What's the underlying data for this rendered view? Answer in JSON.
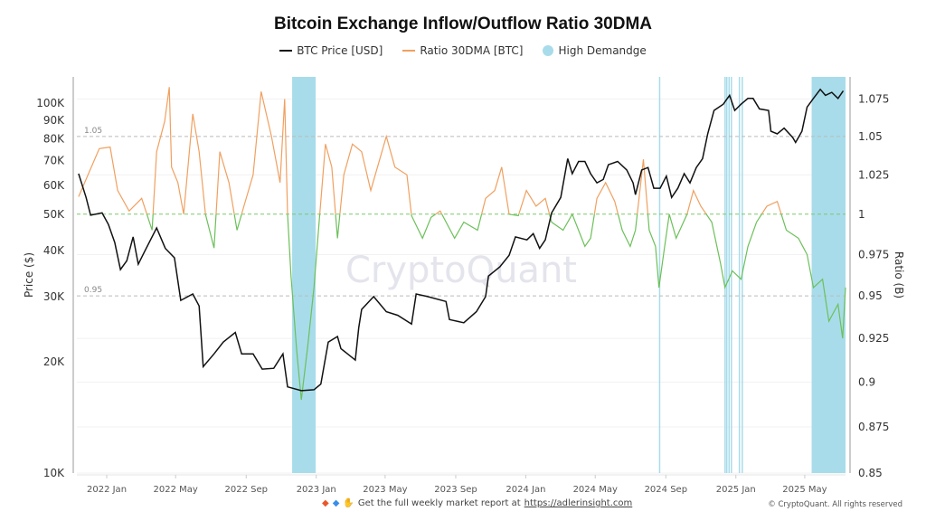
{
  "title": "Bitcoin Exchange Inflow/Outflow Ratio 30DMA",
  "legend": [
    {
      "label": "BTC Price [USD]",
      "color": "#111111",
      "icon": "line"
    },
    {
      "label": "Ratio 30DMA [BTC]",
      "color": "#f0a060",
      "icon": "line"
    },
    {
      "label": "High Demandge",
      "color": "#a8dcea",
      "icon": "circle"
    }
  ],
  "footer": {
    "icons": [
      "orange-diamond-icon",
      "blue-diamond-icon",
      "raised-hands-icon"
    ],
    "text": "Get the full weekly market report at",
    "link": "https://adlerinsight.com",
    "copyright": "© CryptoQuant. All rights reserved"
  },
  "watermark": "CryptoQuant",
  "chart_data": {
    "type": "line",
    "title": "Bitcoin Exchange Inflow/Outflow Ratio 30DMA",
    "x_range": [
      "2021-11-10",
      "2025-07-11"
    ],
    "x_ticks": [
      {
        "date": "2022-01-01",
        "label": "2022 Jan"
      },
      {
        "date": "2022-05-01",
        "label": "2022 May"
      },
      {
        "date": "2022-09-01",
        "label": "2022 Sep"
      },
      {
        "date": "2023-01-01",
        "label": "2023 Jan"
      },
      {
        "date": "2023-05-01",
        "label": "2023 May"
      },
      {
        "date": "2023-09-01",
        "label": "2023 Sep"
      },
      {
        "date": "2024-01-01",
        "label": "2024 Jan"
      },
      {
        "date": "2024-05-01",
        "label": "2024 May"
      },
      {
        "date": "2024-09-01",
        "label": "2024 Sep"
      },
      {
        "date": "2025-01-01",
        "label": "2025 Jan"
      },
      {
        "date": "2025-05-01",
        "label": "2025 May"
      }
    ],
    "y_left": {
      "label": "Price ($)",
      "scale": "log",
      "range": [
        10000,
        117800
      ],
      "ticks": [
        {
          "v": 10000,
          "label": "10K"
        },
        {
          "v": 20000,
          "label": "20K"
        },
        {
          "v": 30000,
          "label": "30K"
        },
        {
          "v": 40000,
          "label": "40K"
        },
        {
          "v": 50000,
          "label": "50K"
        },
        {
          "v": 60000,
          "label": "60K"
        },
        {
          "v": 70000,
          "label": "70K"
        },
        {
          "v": 80000,
          "label": "80K"
        },
        {
          "v": 90000,
          "label": "90K"
        },
        {
          "v": 100000,
          "label": "100K"
        }
      ]
    },
    "y_right": {
      "label": "Ratio (B)",
      "scale": "log",
      "range": [
        0.85,
        1.09
      ],
      "ticks": [
        {
          "v": 0.85,
          "label": "0.85"
        },
        {
          "v": 0.875,
          "label": "0.875"
        },
        {
          "v": 0.9,
          "label": "0.9"
        },
        {
          "v": 0.925,
          "label": "0.925"
        },
        {
          "v": 0.95,
          "label": "0.95"
        },
        {
          "v": 0.975,
          "label": "0.975"
        },
        {
          "v": 1,
          "label": "1"
        },
        {
          "v": 1.025,
          "label": "1.025"
        },
        {
          "v": 1.05,
          "label": "1.05"
        },
        {
          "v": 1.075,
          "label": "1.075"
        }
      ]
    },
    "reference_lines": [
      {
        "v": 1.05,
        "label": "1.05",
        "color": "#bbbbbb"
      },
      {
        "v": 1.0,
        "label": "",
        "color": "#7cc86a"
      },
      {
        "v": 0.95,
        "label": "0.95",
        "color": "#bbbbbb"
      }
    ],
    "ratio_colors": {
      "above_1": "#f0a060",
      "below_1": "#6cc05a"
    },
    "grid": true,
    "legend_position": "top",
    "series": [
      {
        "name": "BTC Price [USD]",
        "axis": "left",
        "color": "#111111",
        "points": [
          [
            "2021-11-13",
            64500
          ],
          [
            "2021-11-26",
            55600
          ],
          [
            "2021-12-04",
            49800
          ],
          [
            "2021-12-24",
            50500
          ],
          [
            "2022-01-04",
            47000
          ],
          [
            "2022-01-15",
            42000
          ],
          [
            "2022-01-25",
            35500
          ],
          [
            "2022-02-05",
            37500
          ],
          [
            "2022-02-16",
            43500
          ],
          [
            "2022-02-25",
            36700
          ],
          [
            "2022-03-08",
            39700
          ],
          [
            "2022-03-29",
            46000
          ],
          [
            "2022-04-13",
            40500
          ],
          [
            "2022-04-29",
            38200
          ],
          [
            "2022-05-10",
            29300
          ],
          [
            "2022-05-31",
            30500
          ],
          [
            "2022-06-11",
            28300
          ],
          [
            "2022-06-18",
            19400
          ],
          [
            "2022-07-07",
            21000
          ],
          [
            "2022-07-23",
            22600
          ],
          [
            "2022-08-13",
            24000
          ],
          [
            "2022-08-24",
            21000
          ],
          [
            "2022-09-13",
            21000
          ],
          [
            "2022-09-29",
            19100
          ],
          [
            "2022-10-19",
            19200
          ],
          [
            "2022-11-04",
            21000
          ],
          [
            "2022-11-12",
            17100
          ],
          [
            "2022-12-06",
            16700
          ],
          [
            "2022-12-28",
            16800
          ],
          [
            "2023-01-09",
            17400
          ],
          [
            "2023-01-22",
            22600
          ],
          [
            "2023-02-07",
            23400
          ],
          [
            "2023-02-13",
            21700
          ],
          [
            "2023-03-10",
            20200
          ],
          [
            "2023-03-16",
            24700
          ],
          [
            "2023-03-21",
            27700
          ],
          [
            "2023-04-11",
            30000
          ],
          [
            "2023-05-03",
            27300
          ],
          [
            "2023-05-23",
            26700
          ],
          [
            "2023-06-16",
            25300
          ],
          [
            "2023-06-24",
            30500
          ],
          [
            "2023-07-14",
            30000
          ],
          [
            "2023-08-15",
            29100
          ],
          [
            "2023-08-21",
            26000
          ],
          [
            "2023-09-15",
            25500
          ],
          [
            "2023-10-07",
            27300
          ],
          [
            "2023-10-23",
            30000
          ],
          [
            "2023-10-28",
            34100
          ],
          [
            "2023-11-17",
            36100
          ],
          [
            "2023-12-03",
            38800
          ],
          [
            "2023-12-14",
            43500
          ],
          [
            "2024-01-03",
            42700
          ],
          [
            "2024-01-14",
            44400
          ],
          [
            "2024-01-25",
            40500
          ],
          [
            "2024-02-04",
            42700
          ],
          [
            "2024-02-15",
            50500
          ],
          [
            "2024-03-02",
            55600
          ],
          [
            "2024-03-14",
            70800
          ],
          [
            "2024-03-22",
            64500
          ],
          [
            "2024-04-02",
            69600
          ],
          [
            "2024-04-13",
            69600
          ],
          [
            "2024-04-23",
            64500
          ],
          [
            "2024-05-04",
            60900
          ],
          [
            "2024-05-15",
            62200
          ],
          [
            "2024-05-24",
            68200
          ],
          [
            "2024-06-09",
            69600
          ],
          [
            "2024-06-25",
            66000
          ],
          [
            "2024-07-06",
            60900
          ],
          [
            "2024-07-10",
            56600
          ],
          [
            "2024-07-21",
            66000
          ],
          [
            "2024-08-01",
            67000
          ],
          [
            "2024-08-11",
            58900
          ],
          [
            "2024-08-22",
            58900
          ],
          [
            "2024-09-02",
            63500
          ],
          [
            "2024-09-11",
            55600
          ],
          [
            "2024-09-22",
            58900
          ],
          [
            "2024-10-03",
            64500
          ],
          [
            "2024-10-13",
            60900
          ],
          [
            "2024-10-24",
            67000
          ],
          [
            "2024-11-04",
            70800
          ],
          [
            "2024-11-13",
            82600
          ],
          [
            "2024-11-24",
            95600
          ],
          [
            "2024-12-10",
            99400
          ],
          [
            "2024-12-21",
            105000
          ],
          [
            "2024-12-30",
            95600
          ],
          [
            "2025-01-10",
            99400
          ],
          [
            "2025-01-22",
            103000
          ],
          [
            "2025-01-31",
            103000
          ],
          [
            "2025-02-11",
            96500
          ],
          [
            "2025-02-27",
            95600
          ],
          [
            "2025-03-03",
            84000
          ],
          [
            "2025-03-14",
            82600
          ],
          [
            "2025-03-26",
            85600
          ],
          [
            "2025-04-10",
            80800
          ],
          [
            "2025-04-15",
            78300
          ],
          [
            "2025-04-26",
            84000
          ],
          [
            "2025-05-05",
            97600
          ],
          [
            "2025-05-16",
            103000
          ],
          [
            "2025-05-28",
            109000
          ],
          [
            "2025-06-06",
            105000
          ],
          [
            "2025-06-17",
            107000
          ],
          [
            "2025-06-28",
            103000
          ],
          [
            "2025-07-07",
            108000
          ]
        ]
      },
      {
        "name": "Ratio 30DMA [BTC]",
        "axis": "right",
        "color": "#f0a060",
        "points": [
          [
            "2021-11-13",
            1.011
          ],
          [
            "2021-12-19",
            1.042
          ],
          [
            "2022-01-07",
            1.043
          ],
          [
            "2022-01-20",
            1.015
          ],
          [
            "2022-02-09",
            1.002
          ],
          [
            "2022-03-03",
            1.01
          ],
          [
            "2022-03-21",
            0.99
          ],
          [
            "2022-03-29",
            1.04
          ],
          [
            "2022-04-12",
            1.06
          ],
          [
            "2022-04-20",
            1.083
          ],
          [
            "2022-04-24",
            1.03
          ],
          [
            "2022-05-05",
            1.02
          ],
          [
            "2022-05-15",
            1.0
          ],
          [
            "2022-05-31",
            1.065
          ],
          [
            "2022-06-11",
            1.04
          ],
          [
            "2022-06-22",
            1.0
          ],
          [
            "2022-07-07",
            0.979
          ],
          [
            "2022-07-17",
            1.04
          ],
          [
            "2022-08-02",
            1.02
          ],
          [
            "2022-08-16",
            0.99
          ],
          [
            "2022-08-28",
            1.005
          ],
          [
            "2022-09-13",
            1.025
          ],
          [
            "2022-09-27",
            1.08
          ],
          [
            "2022-10-15",
            1.05
          ],
          [
            "2022-10-30",
            1.02
          ],
          [
            "2022-11-07",
            1.075
          ],
          [
            "2022-11-12",
            1.0
          ],
          [
            "2022-11-18",
            0.962
          ],
          [
            "2022-11-28",
            0.918
          ],
          [
            "2022-12-06",
            0.89
          ],
          [
            "2022-12-17",
            0.92
          ],
          [
            "2022-12-28",
            0.955
          ],
          [
            "2023-01-06",
            0.995
          ],
          [
            "2023-01-17",
            1.045
          ],
          [
            "2023-01-28",
            1.03
          ],
          [
            "2023-02-07",
            0.985
          ],
          [
            "2023-02-18",
            1.025
          ],
          [
            "2023-03-05",
            1.045
          ],
          [
            "2023-03-21",
            1.04
          ],
          [
            "2023-04-06",
            1.015
          ],
          [
            "2023-05-03",
            1.05
          ],
          [
            "2023-05-18",
            1.03
          ],
          [
            "2023-06-08",
            1.025
          ],
          [
            "2023-06-16",
            0.999
          ],
          [
            "2023-07-05",
            0.985
          ],
          [
            "2023-07-20",
            0.998
          ],
          [
            "2023-08-05",
            1.002
          ],
          [
            "2023-08-30",
            0.985
          ],
          [
            "2023-09-15",
            0.995
          ],
          [
            "2023-10-09",
            0.99
          ],
          [
            "2023-10-23",
            1.01
          ],
          [
            "2023-11-08",
            1.015
          ],
          [
            "2023-11-20",
            1.03
          ],
          [
            "2023-12-03",
            1.0
          ],
          [
            "2023-12-19",
            0.999
          ],
          [
            "2024-01-02",
            1.015
          ],
          [
            "2024-01-19",
            1.005
          ],
          [
            "2024-02-04",
            1.01
          ],
          [
            "2024-02-15",
            0.995
          ],
          [
            "2024-03-06",
            0.99
          ],
          [
            "2024-03-22",
            1.0
          ],
          [
            "2024-04-13",
            0.98
          ],
          [
            "2024-04-23",
            0.985
          ],
          [
            "2024-05-04",
            1.01
          ],
          [
            "2024-05-19",
            1.02
          ],
          [
            "2024-06-04",
            1.008
          ],
          [
            "2024-06-17",
            0.99
          ],
          [
            "2024-07-01",
            0.98
          ],
          [
            "2024-07-10",
            0.99
          ],
          [
            "2024-07-24",
            1.035
          ],
          [
            "2024-08-03",
            0.99
          ],
          [
            "2024-08-14",
            0.98
          ],
          [
            "2024-08-20",
            0.955
          ],
          [
            "2024-08-30",
            0.98
          ],
          [
            "2024-09-07",
            1.0
          ],
          [
            "2024-09-19",
            0.985
          ],
          [
            "2024-10-08",
            1.0
          ],
          [
            "2024-10-19",
            1.015
          ],
          [
            "2024-11-01",
            1.005
          ],
          [
            "2024-11-20",
            0.995
          ],
          [
            "2024-12-05",
            0.97
          ],
          [
            "2024-12-13",
            0.955
          ],
          [
            "2024-12-26",
            0.965
          ],
          [
            "2025-01-10",
            0.96
          ],
          [
            "2025-01-22",
            0.98
          ],
          [
            "2025-02-06",
            0.995
          ],
          [
            "2025-02-24",
            1.005
          ],
          [
            "2025-03-14",
            1.008
          ],
          [
            "2025-03-30",
            0.99
          ],
          [
            "2025-04-20",
            0.985
          ],
          [
            "2025-05-05",
            0.975
          ],
          [
            "2025-05-16",
            0.955
          ],
          [
            "2025-06-01",
            0.96
          ],
          [
            "2025-06-12",
            0.935
          ],
          [
            "2025-06-28",
            0.945
          ],
          [
            "2025-07-06",
            0.925
          ],
          [
            "2025-07-11",
            0.955
          ]
        ]
      }
    ],
    "high_demand_periods": [
      [
        "2022-11-20",
        "2022-12-31"
      ],
      [
        "2024-08-20",
        "2024-08-21"
      ],
      [
        "2024-12-12",
        "2024-12-13"
      ],
      [
        "2024-12-15",
        "2024-12-16"
      ],
      [
        "2024-12-19",
        "2024-12-20"
      ],
      [
        "2024-12-23",
        "2024-12-24"
      ],
      [
        "2025-01-06",
        "2025-01-07"
      ],
      [
        "2025-01-11",
        "2025-01-12"
      ],
      [
        "2025-05-13",
        "2025-07-11"
      ]
    ]
  }
}
